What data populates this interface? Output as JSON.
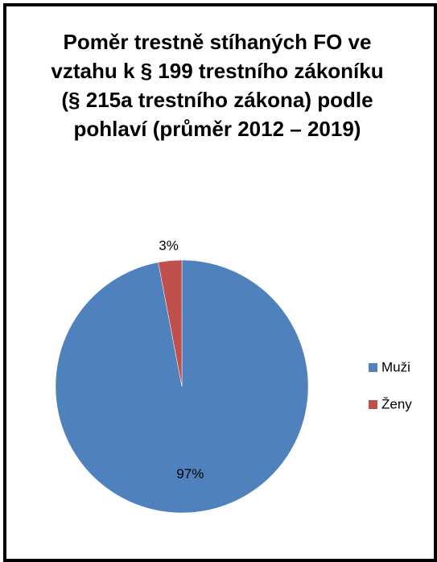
{
  "chart_data": {
    "type": "pie",
    "title": "Poměr trestně stíhaných FO ve vztahu k § 199 trestního zákoníku (§ 215a trestního zákona) podle pohlaví (průměr 2012 – 2019)",
    "categories": [
      "Muži",
      "Ženy"
    ],
    "values": [
      97,
      3
    ],
    "value_labels": [
      "97%",
      "3%"
    ],
    "colors": [
      "#4f81bd",
      "#c0504d"
    ],
    "legend": "right"
  }
}
